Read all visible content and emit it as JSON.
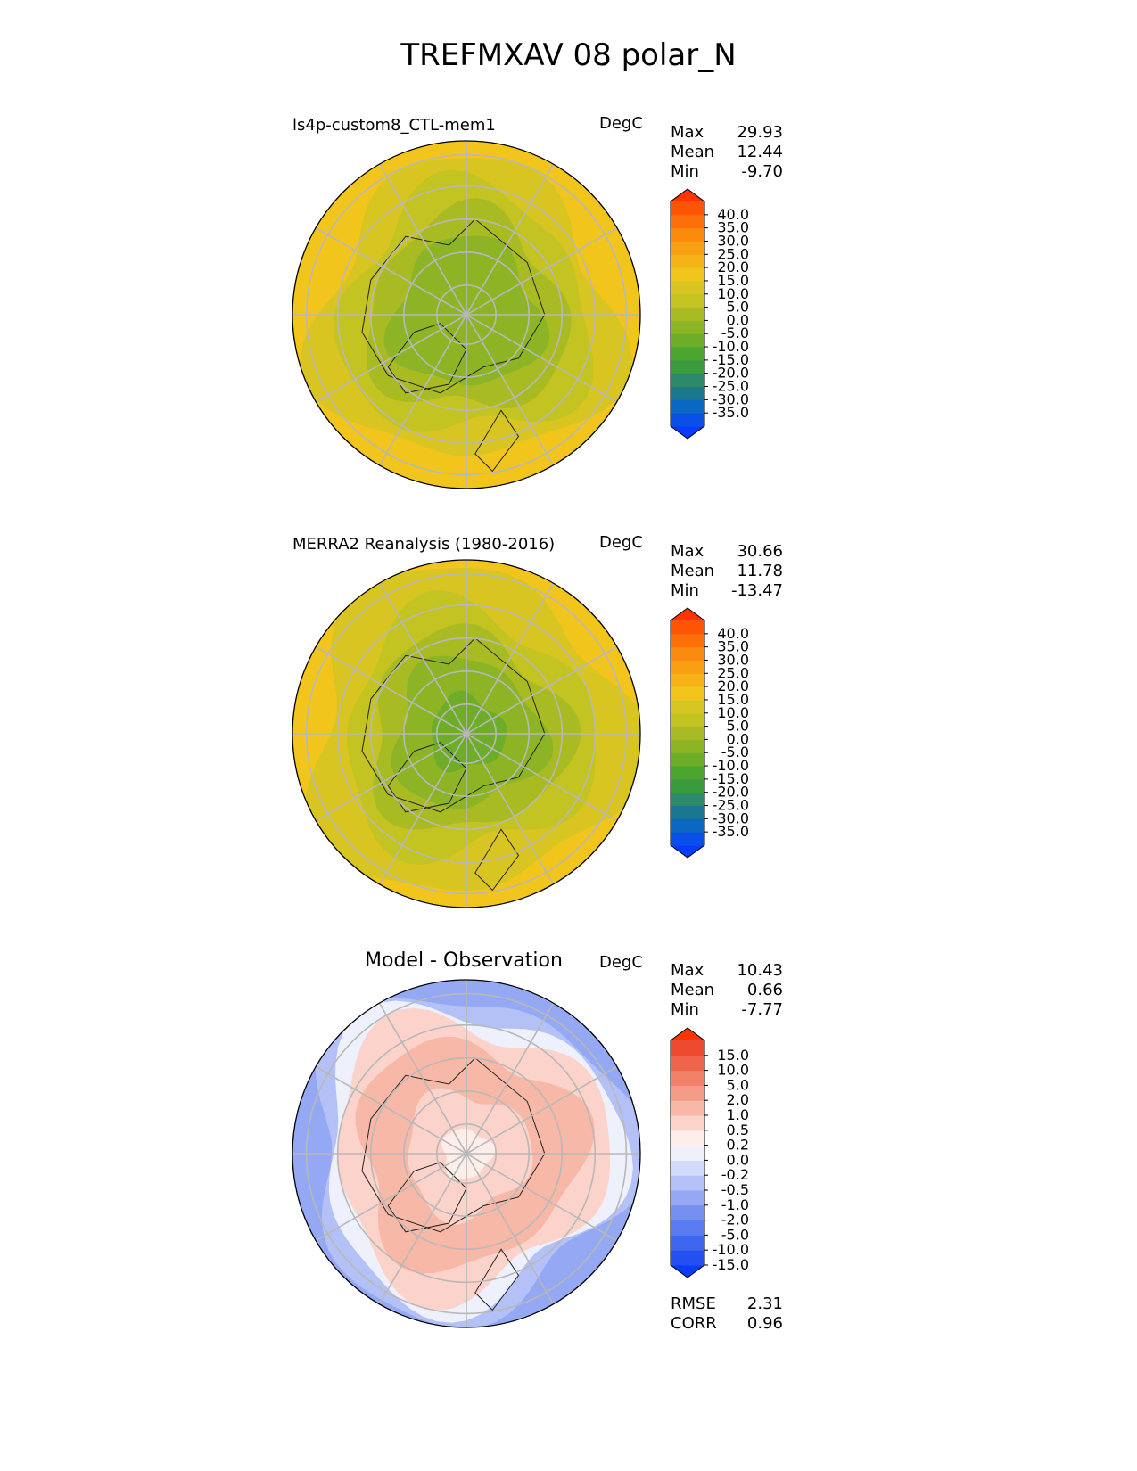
{
  "figure_title": "TREFMXAV 08 polar_N",
  "chart_data": [
    {
      "type": "heatmap",
      "projection": "north polar stereographic",
      "title": "ls4p-custom8_CTL-mem1",
      "units": "DegC",
      "stats": [
        {
          "label": "Max",
          "value": "29.93"
        },
        {
          "label": "Mean",
          "value": "12.44"
        },
        {
          "label": "Min",
          "value": "-9.70"
        }
      ],
      "colorbar": {
        "ticks": [
          "40.0",
          "35.0",
          "30.0",
          "25.0",
          "20.0",
          "15.0",
          "10.0",
          "5.0",
          "0.0",
          "-5.0",
          "-10.0",
          "-15.0",
          "-20.0",
          "-25.0",
          "-30.0",
          "-35.0"
        ],
        "colors": [
          "#0a3cff",
          "#0a4fe6",
          "#0b68c2",
          "#19788f",
          "#2c8a6a",
          "#3a9a3e",
          "#4ca52e",
          "#6ead28",
          "#8cb425",
          "#a9bb22",
          "#c3c321",
          "#d9c521",
          "#f2c51d",
          "#f6b217",
          "#f89f12",
          "#fb8b0e",
          "#fd7009",
          "#ff5306",
          "#ff3303"
        ]
      },
      "field_stops": [
        {
          "r": 0.0,
          "value": 0.0
        },
        {
          "r": 0.25,
          "value": 2.0
        },
        {
          "r": 0.45,
          "value": 6.0
        },
        {
          "r": 0.62,
          "value": 13.0
        },
        {
          "r": 0.8,
          "value": 18.0
        },
        {
          "r": 1.0,
          "value": 24.0
        }
      ]
    },
    {
      "type": "heatmap",
      "projection": "north polar stereographic",
      "title": "MERRA2 Reanalysis (1980-2016)",
      "units": "DegC",
      "stats": [
        {
          "label": "Max",
          "value": "30.66"
        },
        {
          "label": "Mean",
          "value": "11.78"
        },
        {
          "label": "Min",
          "value": "-13.47"
        }
      ],
      "colorbar": {
        "ticks": [
          "40.0",
          "35.0",
          "30.0",
          "25.0",
          "20.0",
          "15.0",
          "10.0",
          "5.0",
          "0.0",
          "-5.0",
          "-10.0",
          "-15.0",
          "-20.0",
          "-25.0",
          "-30.0",
          "-35.0"
        ],
        "colors": [
          "#0a3cff",
          "#0a4fe6",
          "#0b68c2",
          "#19788f",
          "#2c8a6a",
          "#3a9a3e",
          "#4ca52e",
          "#6ead28",
          "#8cb425",
          "#a9bb22",
          "#c3c321",
          "#d9c521",
          "#f2c51d",
          "#f6b217",
          "#f89f12",
          "#fb8b0e",
          "#fd7009",
          "#ff5306",
          "#ff3303"
        ]
      },
      "field_stops": [
        {
          "r": 0.0,
          "value": -2.0
        },
        {
          "r": 0.25,
          "value": 0.0
        },
        {
          "r": 0.45,
          "value": 5.0
        },
        {
          "r": 0.62,
          "value": 12.0
        },
        {
          "r": 0.8,
          "value": 17.0
        },
        {
          "r": 1.0,
          "value": 23.0
        }
      ]
    },
    {
      "type": "heatmap",
      "projection": "north polar stereographic",
      "title": "Model - Observation",
      "units": "DegC",
      "stats": [
        {
          "label": "Max",
          "value": "10.43"
        },
        {
          "label": "Mean",
          "value": "0.66"
        },
        {
          "label": "Min",
          "value": "-7.77"
        }
      ],
      "extra_stats": [
        {
          "label": "RMSE",
          "value": "2.31"
        },
        {
          "label": "CORR",
          "value": "0.96"
        }
      ],
      "colorbar": {
        "ticks": [
          "15.0",
          "10.0",
          "5.0",
          "2.0",
          "1.0",
          "0.5",
          "0.2",
          "0.0",
          "-0.2",
          "-0.5",
          "-1.0",
          "-2.0",
          "-5.0",
          "-10.0",
          "-15.0"
        ],
        "colors": [
          "#0a3cff",
          "#2450f2",
          "#3f66ef",
          "#5a7cf0",
          "#7690f2",
          "#94a8f4",
          "#b3c1f7",
          "#d2dbfa",
          "#eef0fc",
          "#fdeeea",
          "#fbd3ca",
          "#f8b8a8",
          "#f59c88",
          "#f38068",
          "#f0654a",
          "#ee4a30",
          "#ff3303"
        ]
      },
      "field_stops": [
        {
          "r": 0.0,
          "value": 0.2
        },
        {
          "r": 0.3,
          "value": 0.8
        },
        {
          "r": 0.55,
          "value": 1.5
        },
        {
          "r": 0.75,
          "value": 0.5
        },
        {
          "r": 1.0,
          "value": -1.0
        }
      ]
    }
  ]
}
